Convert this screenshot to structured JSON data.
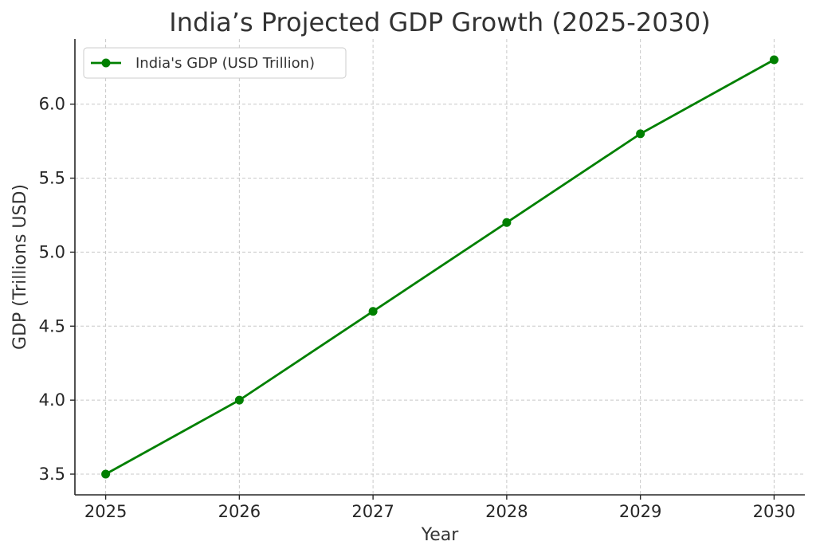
{
  "chart_data": {
    "type": "line",
    "title": "India’s Projected GDP Growth (2025-2030)",
    "xlabel": "Year",
    "ylabel": "GDP (Trillions USD)",
    "x": [
      2025,
      2026,
      2027,
      2028,
      2029,
      2030
    ],
    "x_tick_labels": [
      "2025",
      "2026",
      "2027",
      "2028",
      "2029",
      "2030"
    ],
    "y_tick_values": [
      3.5,
      4.0,
      4.5,
      5.0,
      5.5,
      6.0
    ],
    "y_tick_labels": [
      "3.5",
      "4.0",
      "4.5",
      "5.0",
      "5.5",
      "6.0"
    ],
    "ylim": [
      3.36,
      6.44
    ],
    "xlim": [
      2024.77,
      2030.23
    ],
    "grid": true,
    "grid_style": "dashed",
    "legend_position": "top-left",
    "series": [
      {
        "name": "India's GDP (USD Trillion)",
        "values": [
          3.5,
          4.0,
          4.6,
          5.2,
          5.8,
          6.3
        ],
        "color": "#008000",
        "marker": "circle"
      }
    ]
  }
}
